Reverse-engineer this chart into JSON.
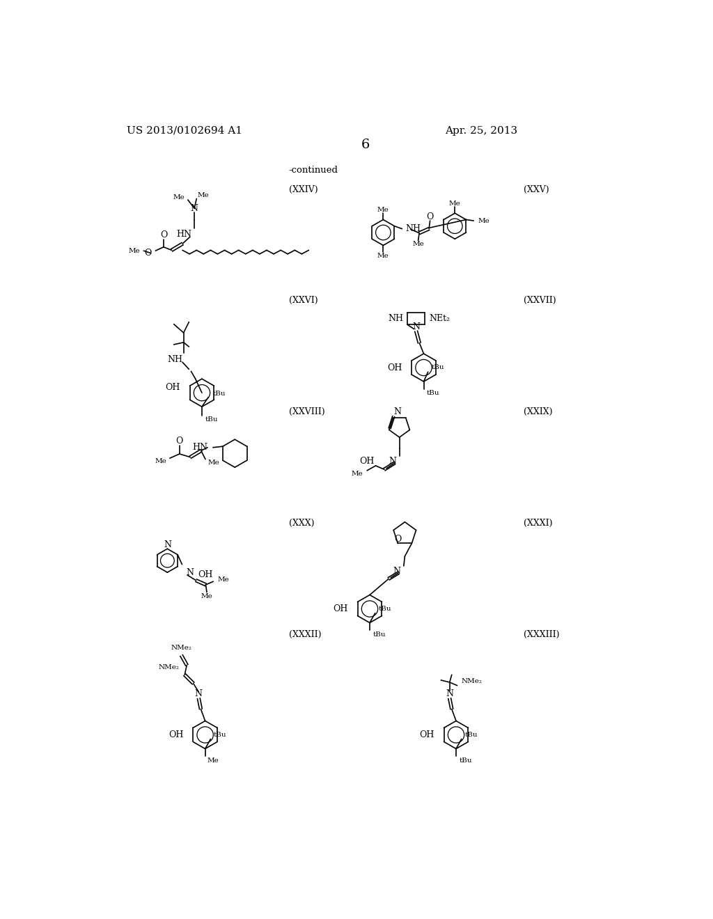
{
  "page_number": "6",
  "patent_number": "US 2013/0102694 A1",
  "patent_date": "Apr. 25, 2013",
  "continued_text": "-continued",
  "background_color": "#ffffff",
  "label_XXIV": "(XXIV)",
  "label_XXV": "(XXV)",
  "label_XXVI": "(XXVI)",
  "label_XXVII": "(XXVII)",
  "label_XXVIII": "(XXVIII)",
  "label_XXIX": "(XXIX)",
  "label_XXX": "(XXX)",
  "label_XXXI": "(XXXI)",
  "label_XXXII": "(XXXII)",
  "label_XXXIII": "(XXXIII)"
}
